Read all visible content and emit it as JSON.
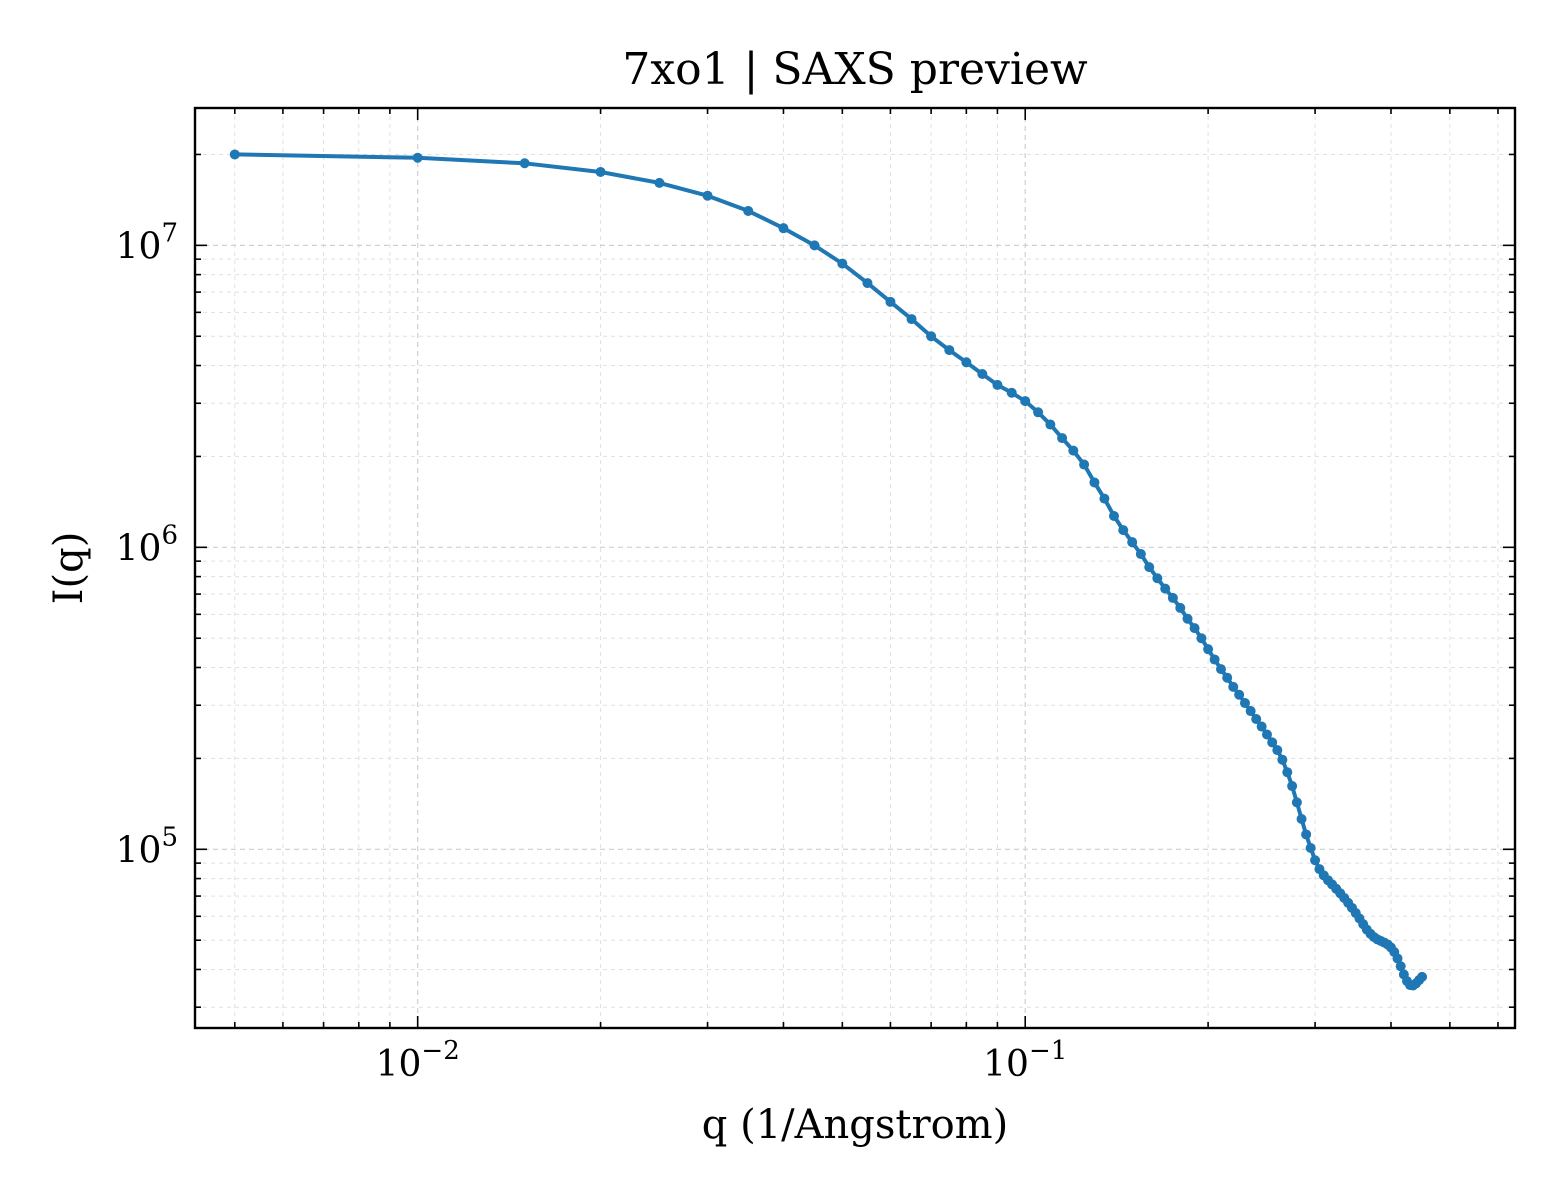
{
  "chart_data": {
    "type": "line",
    "title": "7xo1 | SAXS preview",
    "xlabel": "q (1/Angstrom)",
    "ylabel": "I(q)",
    "xscale": "log",
    "yscale": "log",
    "xlim": [
      0.0043,
      0.64
    ],
    "ylim": [
      25600,
      28500000
    ],
    "x_ticks": [
      {
        "value": 0.01,
        "base": "10",
        "exp": "−2"
      },
      {
        "value": 0.1,
        "base": "10",
        "exp": "−1"
      }
    ],
    "y_ticks": [
      {
        "value": 100000,
        "base": "10",
        "exp": "5"
      },
      {
        "value": 1000000,
        "base": "10",
        "exp": "6"
      },
      {
        "value": 10000000,
        "base": "10",
        "exp": "7"
      }
    ],
    "grid": true,
    "legend": "none",
    "series": [
      {
        "color": "#1f77b4",
        "marker": "circle",
        "points": [
          [
            0.005,
            20000000
          ],
          [
            0.01,
            19500000
          ],
          [
            0.015,
            18700000
          ],
          [
            0.02,
            17500000
          ],
          [
            0.025,
            16100000
          ],
          [
            0.03,
            14600000
          ],
          [
            0.035,
            13000000
          ],
          [
            0.04,
            11400000
          ],
          [
            0.045,
            10000000
          ],
          [
            0.05,
            8700000
          ],
          [
            0.055,
            7500000
          ],
          [
            0.06,
            6500000
          ],
          [
            0.065,
            5700000
          ],
          [
            0.07,
            5000000
          ],
          [
            0.075,
            4500000
          ],
          [
            0.08,
            4100000
          ],
          [
            0.085,
            3750000
          ],
          [
            0.09,
            3450000
          ],
          [
            0.095,
            3250000
          ],
          [
            0.1,
            3050000
          ],
          [
            0.105,
            2800000
          ],
          [
            0.11,
            2550000
          ],
          [
            0.115,
            2300000
          ],
          [
            0.12,
            2090000
          ],
          [
            0.125,
            1880000
          ],
          [
            0.13,
            1640000
          ],
          [
            0.135,
            1450000
          ],
          [
            0.14,
            1270000
          ],
          [
            0.145,
            1140000
          ],
          [
            0.15,
            1040000
          ],
          [
            0.155,
            950000
          ],
          [
            0.16,
            860000
          ],
          [
            0.165,
            790000
          ],
          [
            0.17,
            730000
          ],
          [
            0.175,
            680000
          ],
          [
            0.18,
            630000
          ],
          [
            0.185,
            580000
          ],
          [
            0.19,
            540000
          ],
          [
            0.195,
            500000
          ],
          [
            0.2,
            460000
          ],
          [
            0.205,
            425000
          ],
          [
            0.21,
            395000
          ],
          [
            0.215,
            370000
          ],
          [
            0.22,
            345000
          ],
          [
            0.225,
            325000
          ],
          [
            0.23,
            305000
          ],
          [
            0.235,
            287000
          ],
          [
            0.24,
            270000
          ],
          [
            0.245,
            255000
          ],
          [
            0.25,
            240000
          ],
          [
            0.255,
            226000
          ],
          [
            0.26,
            213000
          ],
          [
            0.265,
            198000
          ],
          [
            0.27,
            180000
          ],
          [
            0.275,
            162000
          ],
          [
            0.28,
            143000
          ],
          [
            0.285,
            126000
          ],
          [
            0.29,
            112000
          ],
          [
            0.295,
            101000
          ],
          [
            0.3,
            92000
          ],
          [
            0.305,
            86000
          ],
          [
            0.31,
            82000
          ],
          [
            0.315,
            79000
          ],
          [
            0.32,
            76500
          ],
          [
            0.325,
            74000
          ],
          [
            0.33,
            71500
          ],
          [
            0.335,
            69000
          ],
          [
            0.34,
            66500
          ],
          [
            0.345,
            64000
          ],
          [
            0.35,
            61500
          ],
          [
            0.355,
            59000
          ],
          [
            0.36,
            56500
          ],
          [
            0.365,
            54200
          ],
          [
            0.37,
            52500
          ],
          [
            0.375,
            51200
          ],
          [
            0.38,
            50300
          ],
          [
            0.385,
            49700
          ],
          [
            0.39,
            49100
          ],
          [
            0.395,
            48400
          ],
          [
            0.4,
            47300
          ],
          [
            0.405,
            45700
          ],
          [
            0.41,
            43500
          ],
          [
            0.415,
            41000
          ],
          [
            0.42,
            38500
          ],
          [
            0.425,
            36600
          ],
          [
            0.43,
            35500
          ],
          [
            0.435,
            35400
          ],
          [
            0.44,
            36000
          ],
          [
            0.445,
            36900
          ],
          [
            0.45,
            37800
          ]
        ]
      }
    ]
  }
}
